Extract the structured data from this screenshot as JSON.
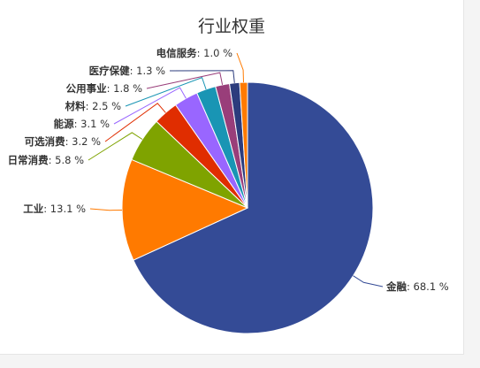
{
  "chart_data": {
    "type": "pie",
    "title": "行业权重",
    "unit": "%",
    "slices": [
      {
        "name": "金融",
        "value": 68.1,
        "color": "#344b96"
      },
      {
        "name": "工业",
        "value": 13.1,
        "color": "#ff7a00"
      },
      {
        "name": "日常消费",
        "value": 5.8,
        "color": "#7fa300"
      },
      {
        "name": "可选消费",
        "value": 3.2,
        "color": "#e02d00"
      },
      {
        "name": "能源",
        "value": 3.1,
        "color": "#9966ff"
      },
      {
        "name": "材料",
        "value": 2.5,
        "color": "#1995b4"
      },
      {
        "name": "公用事业",
        "value": 1.8,
        "color": "#993e7a"
      },
      {
        "name": "医疗保健",
        "value": 1.3,
        "color": "#2c3c7d"
      },
      {
        "name": "电信服务",
        "value": 1.0,
        "color": "#ff7a00"
      }
    ]
  }
}
